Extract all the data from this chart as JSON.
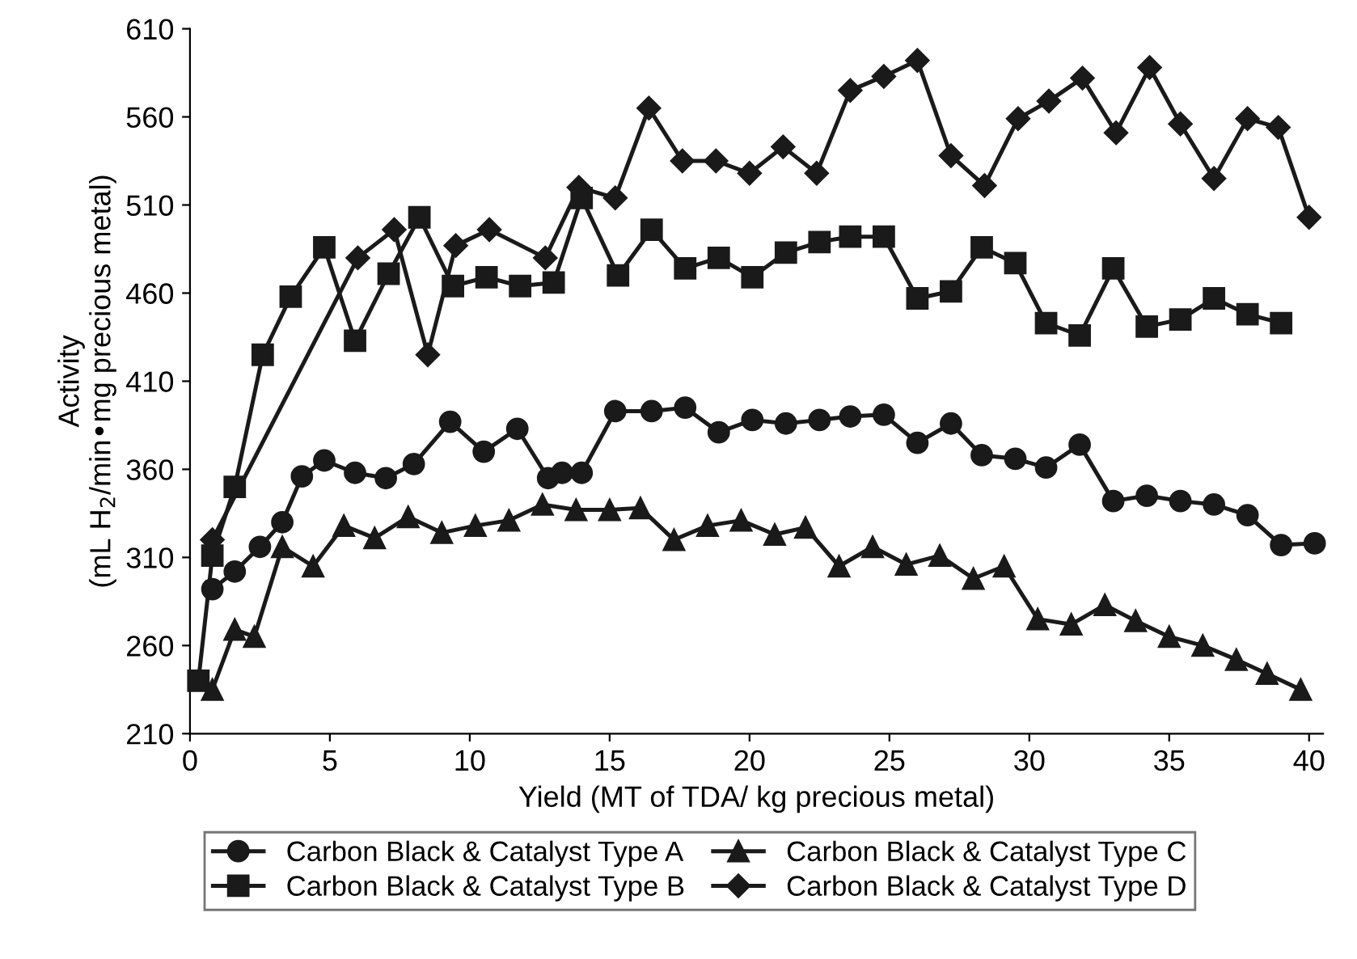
{
  "chart_data": {
    "type": "line",
    "xlabel": "Yield (MT of TDA/ kg precious metal)",
    "ylabel": "Activity\n(mL H$_{2}$/min•mg precious metal)",
    "xlim": [
      0,
      40.5
    ],
    "xticks": [
      0,
      5,
      10,
      15,
      20,
      25,
      30,
      35,
      40
    ],
    "ylim": [
      210,
      610
    ],
    "yticks": [
      210,
      260,
      310,
      360,
      410,
      460,
      510,
      560,
      610
    ],
    "grid": false,
    "legend": "bottom",
    "line_style": "solid",
    "series": [
      {
        "name": "Carbon Black & Catalyst Type A",
        "color": "#1a1a1a",
        "marker": "circle",
        "x": [
          0.8,
          1.6,
          2.5,
          3.3,
          4.0,
          4.8,
          5.9,
          7.0,
          8.0,
          9.3,
          10.5,
          11.7,
          12.8,
          13.3,
          14.0,
          15.2,
          16.5,
          17.7,
          18.9,
          20.1,
          21.3,
          22.5,
          23.6,
          24.8,
          26.0,
          27.2,
          28.3,
          29.5,
          30.6,
          31.8,
          33.0,
          34.2,
          35.4,
          36.6,
          37.8,
          39.0,
          40.2
        ],
        "values": [
          292,
          302,
          316,
          330,
          356,
          365,
          358,
          355,
          363,
          387,
          370,
          383,
          355,
          358,
          358,
          393,
          393,
          395,
          381,
          388,
          386,
          388,
          390,
          391,
          375,
          386,
          368,
          366,
          361,
          374,
          342,
          345,
          342,
          340,
          334,
          317,
          318
        ]
      },
      {
        "name": "Carbon Black & Catalyst Type B",
        "color": "#1a1a1a",
        "marker": "square",
        "x": [
          0.3,
          0.8,
          1.6,
          2.6,
          3.6,
          4.8,
          5.9,
          7.1,
          8.2,
          9.4,
          10.6,
          11.8,
          13.0,
          14.0,
          15.3,
          16.5,
          17.7,
          18.9,
          20.1,
          21.3,
          22.5,
          23.6,
          24.8,
          26.0,
          27.2,
          28.3,
          29.5,
          30.6,
          31.8,
          33.0,
          34.2,
          35.4,
          36.6,
          37.8,
          39.0
        ],
        "values": [
          240,
          311,
          350,
          425,
          458,
          486,
          433,
          471,
          503,
          464,
          469,
          464,
          466,
          514,
          470,
          496,
          474,
          480,
          469,
          483,
          489,
          492,
          492,
          457,
          461,
          486,
          477,
          443,
          436,
          474,
          441,
          445,
          457,
          448,
          443
        ]
      },
      {
        "name": "Carbon Black & Catalyst Type C",
        "color": "#1a1a1a",
        "marker": "triangle",
        "x": [
          0.8,
          1.6,
          2.3,
          3.3,
          4.4,
          5.5,
          6.6,
          7.8,
          9.0,
          10.2,
          11.4,
          12.6,
          13.8,
          15.0,
          16.1,
          17.3,
          18.5,
          19.7,
          20.9,
          22.0,
          23.2,
          24.4,
          25.6,
          26.8,
          28.0,
          29.1,
          30.3,
          31.5,
          32.7,
          33.8,
          35.0,
          36.2,
          37.4,
          38.5,
          39.7
        ],
        "values": [
          235,
          269,
          265,
          316,
          305,
          328,
          321,
          333,
          324,
          328,
          331,
          340,
          337,
          337,
          338,
          320,
          328,
          331,
          323,
          327,
          305,
          316,
          306,
          311,
          298,
          305,
          275,
          272,
          283,
          274,
          265,
          260,
          252,
          244,
          235
        ]
      },
      {
        "name": "Carbon Black & Catalyst Type D",
        "color": "#1a1a1a",
        "marker": "diamond",
        "x": [
          0.8,
          6.0,
          7.3,
          8.5,
          9.5,
          10.7,
          12.7,
          13.9,
          15.2,
          16.4,
          17.6,
          18.8,
          20.0,
          21.2,
          22.4,
          23.6,
          24.8,
          26.0,
          27.2,
          28.4,
          29.6,
          30.7,
          31.9,
          33.1,
          34.3,
          35.4,
          36.6,
          37.8,
          38.9,
          40.0
        ],
        "values": [
          320,
          480,
          496,
          425,
          487,
          496,
          480,
          520,
          514,
          565,
          535,
          535,
          528,
          543,
          528,
          575,
          583,
          592,
          538,
          521,
          559,
          569,
          582,
          551,
          588,
          556,
          525,
          559,
          554,
          503
        ]
      }
    ]
  }
}
